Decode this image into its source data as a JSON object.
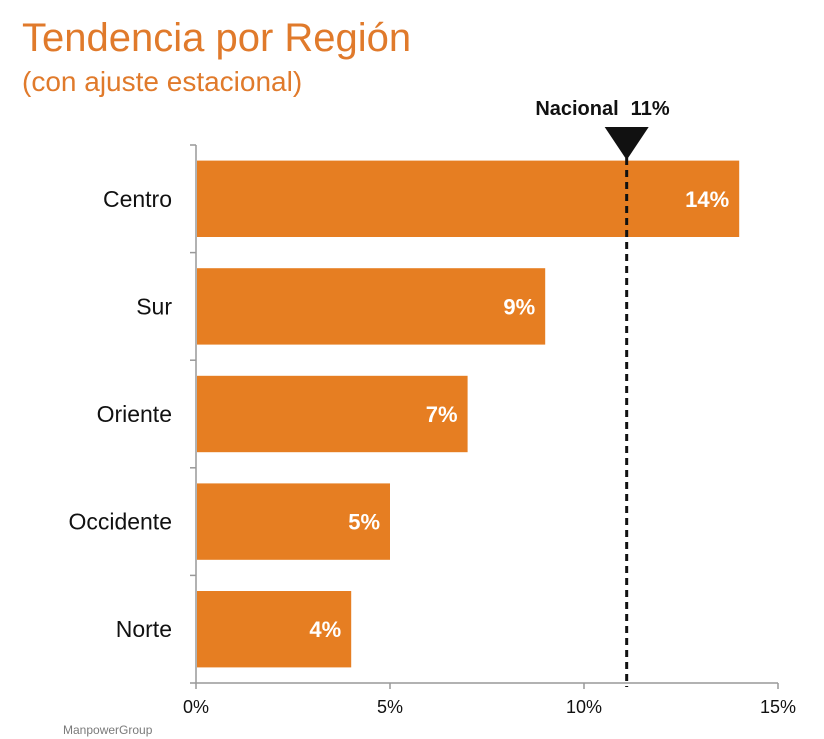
{
  "title": "Tendencia por Región",
  "subtitle": "(con ajuste estacional)",
  "source": "ManpowerGroup",
  "colors": {
    "bar": "#E67E22",
    "title": "#E07A2B",
    "axis": "#999999",
    "reference": "#111111"
  },
  "chart_data": {
    "type": "bar",
    "orientation": "horizontal",
    "title": "Tendencia por Región",
    "subtitle": "(con ajuste estacional)",
    "categories": [
      "Centro",
      "Sur",
      "Oriente",
      "Occidente",
      "Norte"
    ],
    "values": [
      14,
      9,
      7,
      5,
      4
    ],
    "value_labels": [
      "14%",
      "9%",
      "7%",
      "5%",
      "4%"
    ],
    "xlim": [
      0,
      15
    ],
    "xticks": [
      0,
      5,
      10,
      15
    ],
    "xtick_labels": [
      "0%",
      "5%",
      "10%",
      "15%"
    ],
    "reference_line": {
      "label": "Nacional",
      "value": 11.1,
      "value_label": "11%"
    },
    "grid": false,
    "xlabel": "",
    "ylabel": ""
  }
}
